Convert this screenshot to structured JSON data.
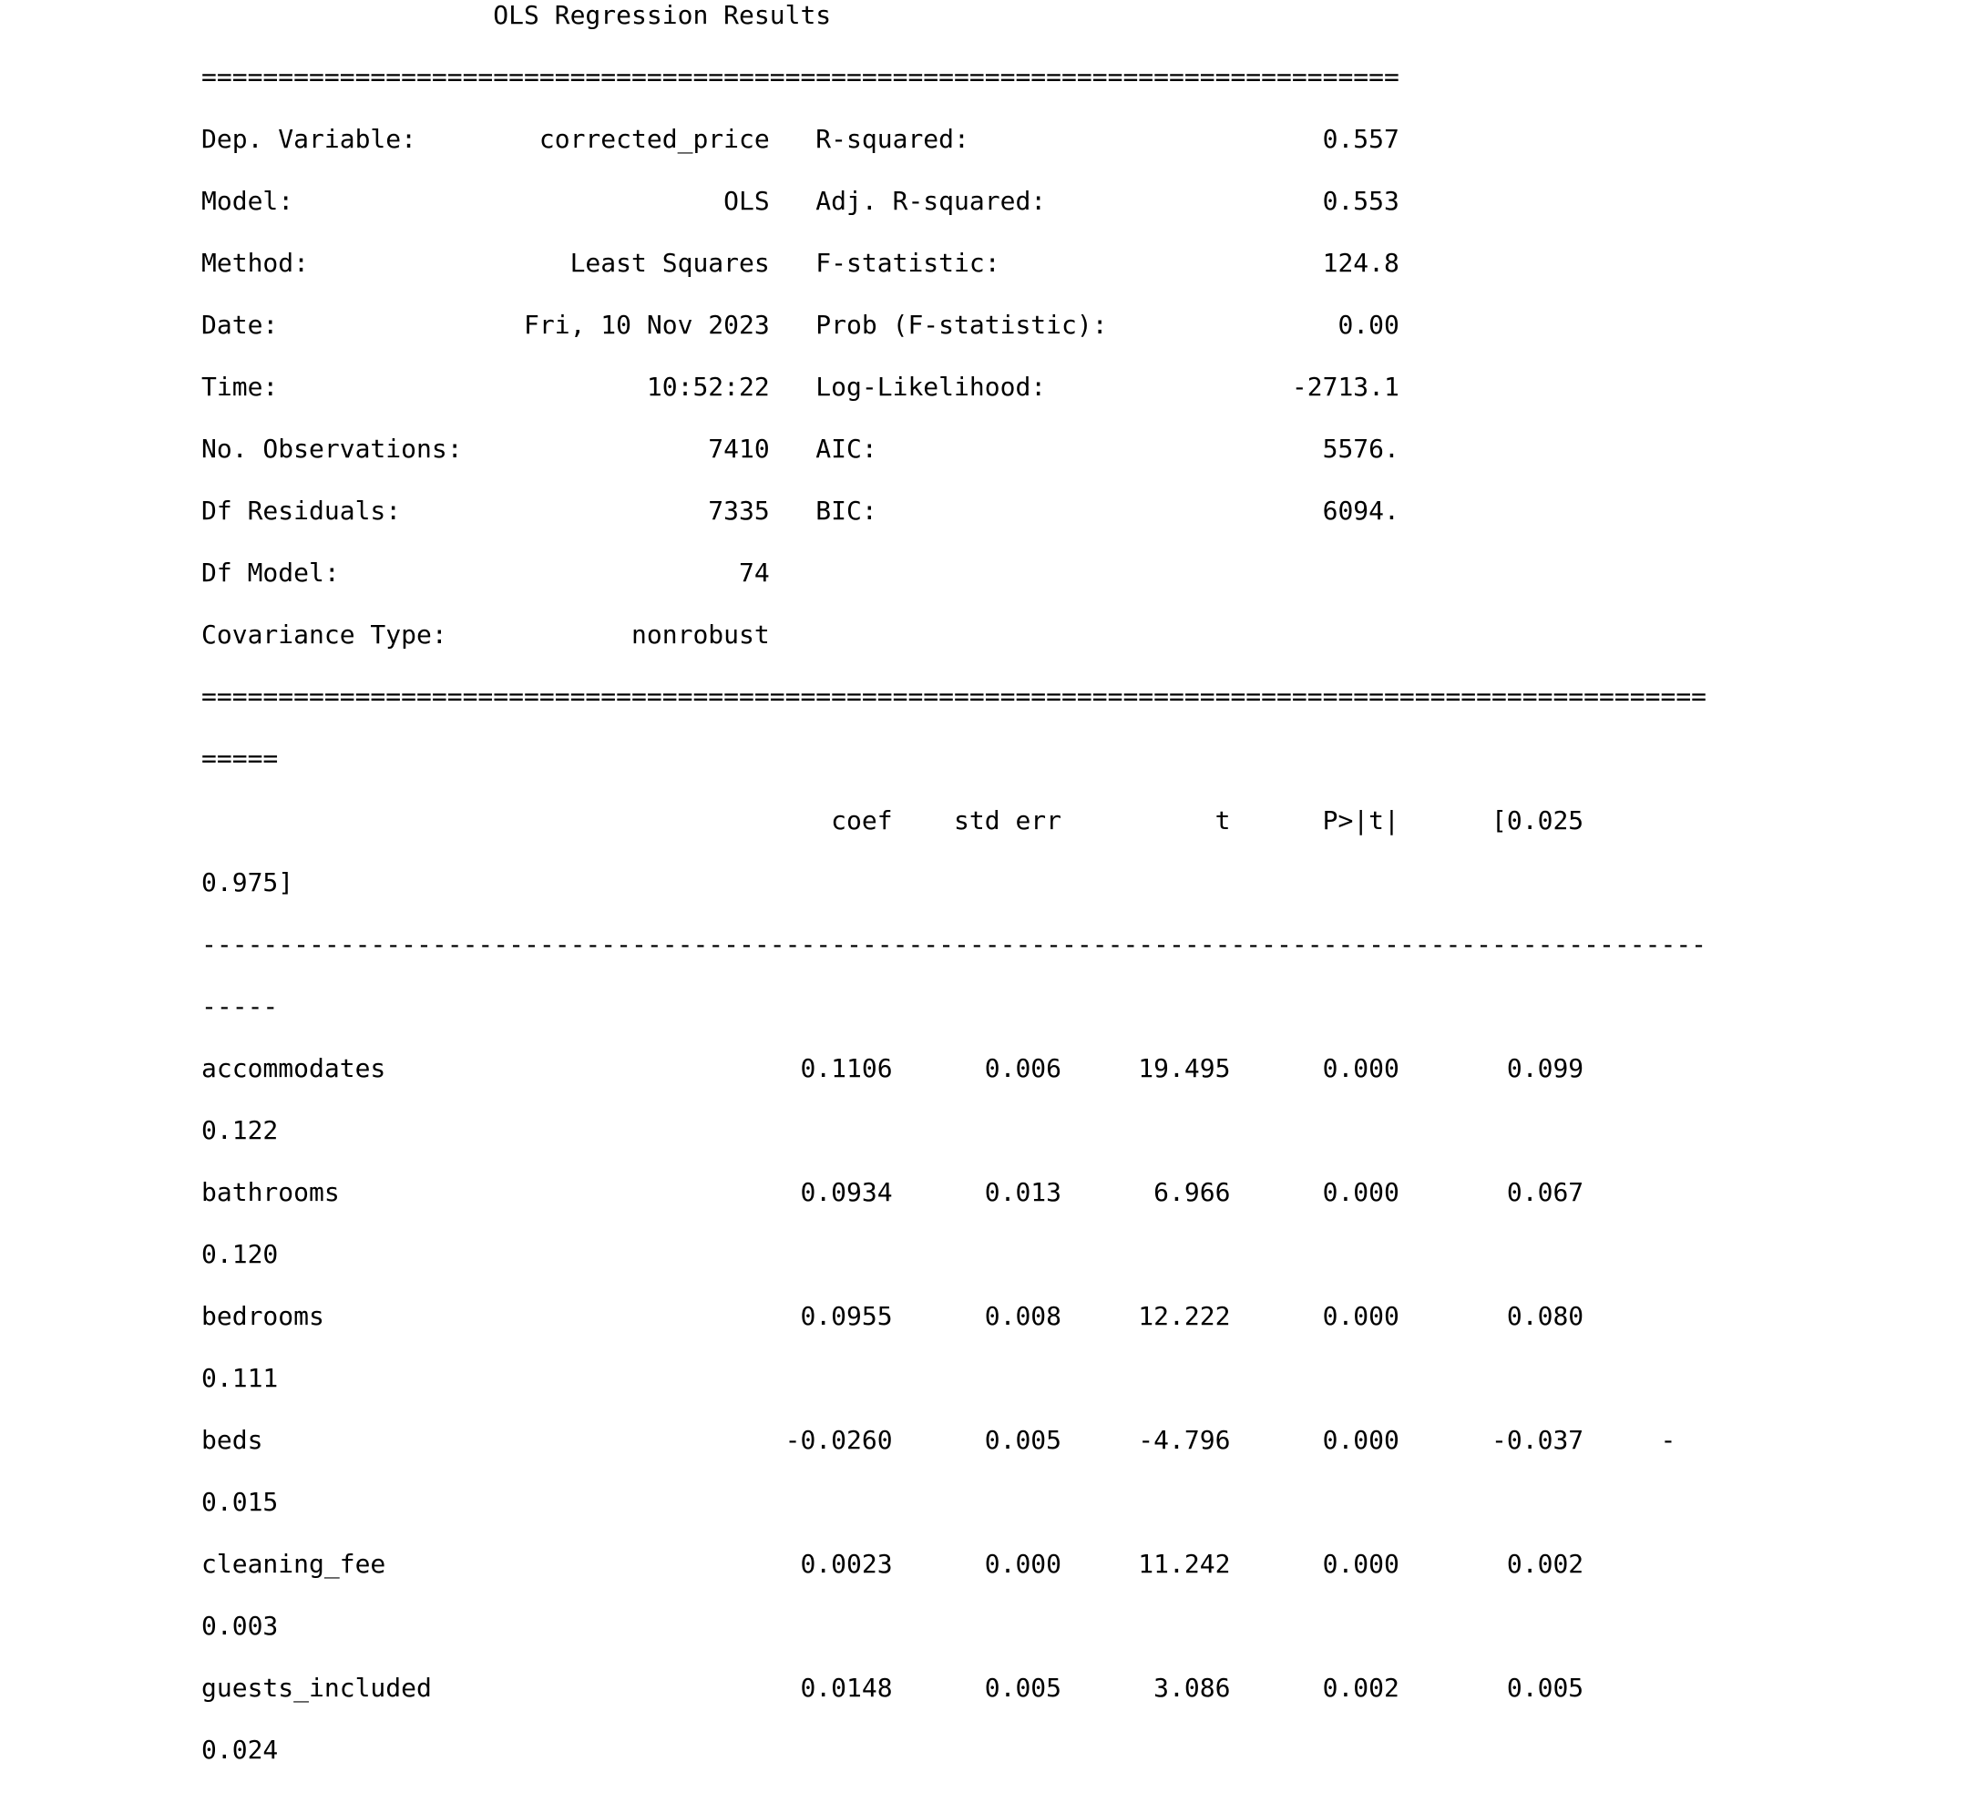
{
  "output": {
    "lines": [
      "                   OLS Regression Results                            ",
      "==============================================================================",
      "Dep. Variable:        corrected_price   R-squared:                       0.557",
      "Model:                            OLS   Adj. R-squared:                  0.553",
      "Method:                 Least Squares   F-statistic:                     124.8",
      "Date:                Fri, 10 Nov 2023   Prob (F-statistic):               0.00",
      "Time:                        10:52:22   Log-Likelihood:                -2713.1",
      "No. Observations:                7410   AIC:                             5576.",
      "Df Residuals:                    7335   BIC:                             6094.",
      "Df Model:                          74                                         ",
      "Covariance Type:            nonrobust                                         ",
      "==================================================================================================",
      "=====",
      "                                         coef    std err          t      P>|t|      [0.025",
      "0.975]",
      "--------------------------------------------------------------------------------------------------",
      "-----",
      "accommodates                           0.1106      0.006     19.495      0.000       0.099",
      "0.122",
      "bathrooms                              0.0934      0.013      6.966      0.000       0.067",
      "0.120",
      "bedrooms                               0.0955      0.008     12.222      0.000       0.080",
      "0.111",
      "beds                                  -0.0260      0.005     -4.796      0.000      -0.037     -",
      "0.015",
      "cleaning_fee                           0.0023      0.000     11.242      0.000       0.002",
      "0.003",
      "guests_included                        0.0148      0.005      3.086      0.002       0.005",
      "0.024"
    ]
  }
}
